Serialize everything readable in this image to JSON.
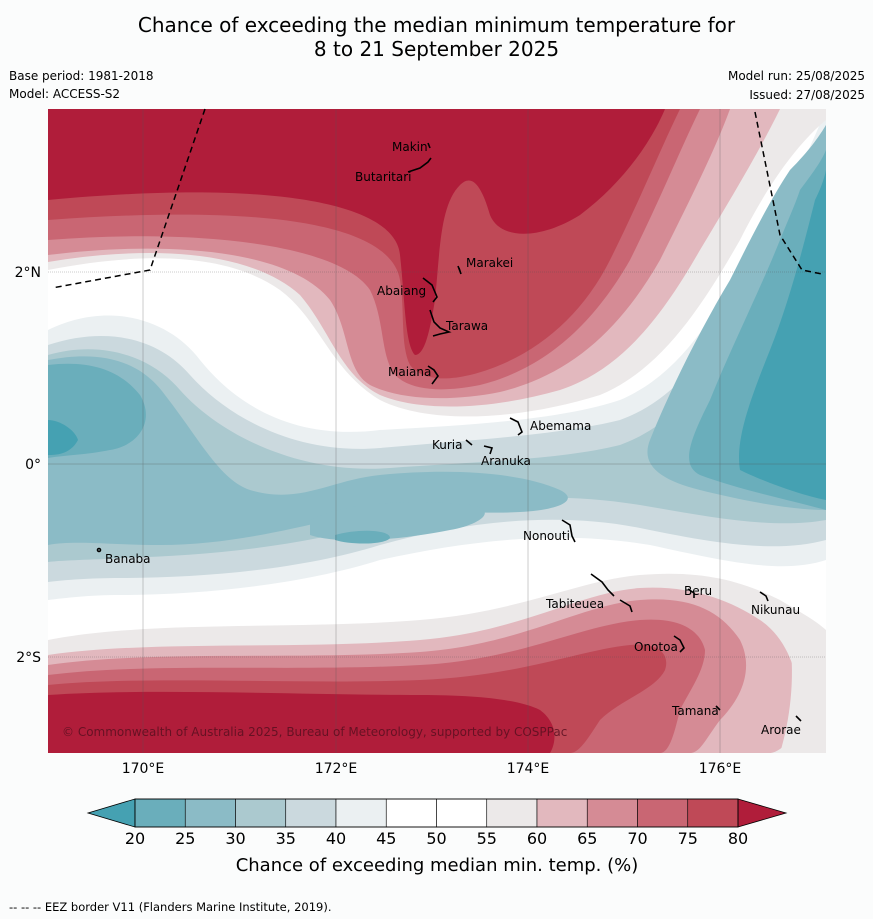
{
  "title": {
    "line1": "Chance of exceeding the median minimum temperature for",
    "line2": "8 to 21 September 2025"
  },
  "meta": {
    "base_period": "Base period: 1981-2018",
    "model": "Model: ACCESS-S2",
    "model_run": "Model run: 25/08/2025",
    "issued": "Issued: 27/08/2025"
  },
  "map": {
    "lon_labels": [
      "170°E",
      "172°E",
      "174°E",
      "176°E"
    ],
    "lat_labels": [
      "2°N",
      "0°",
      "2°S"
    ],
    "islands": [
      "Makin",
      "Butaritari",
      "Marakei",
      "Abaiang",
      "Tarawa",
      "Maiana",
      "Abemama",
      "Kuria",
      "Aranuka",
      "Nonouti",
      "Banaba",
      "Beru",
      "Tabiteuea",
      "Nikunau",
      "Onotoa",
      "Tamana",
      "Arorae"
    ],
    "copyright": "© Commonwealth of Australia 2025, Bureau of Meteorology, supported by COSPPac"
  },
  "colorbar": {
    "ticks": [
      "20",
      "25",
      "30",
      "35",
      "40",
      "45",
      "50",
      "55",
      "60",
      "65",
      "70",
      "75",
      "80"
    ],
    "colors": [
      "#6aaebb",
      "#8bbbc6",
      "#abc9cf",
      "#cbd9de",
      "#ebf0f2",
      "#ffffff",
      "#ffffff",
      "#ece9e9",
      "#e2b8be",
      "#d58b95",
      "#c96673",
      "#bf4957"
    ],
    "low_color": "#45a1b2",
    "high_color": "#b01d3a",
    "label": "Chance of exceeding median min. temp. (%)"
  },
  "footer": "--  --  -- EEZ border V11 (Flanders Marine Institute, 2019)."
}
